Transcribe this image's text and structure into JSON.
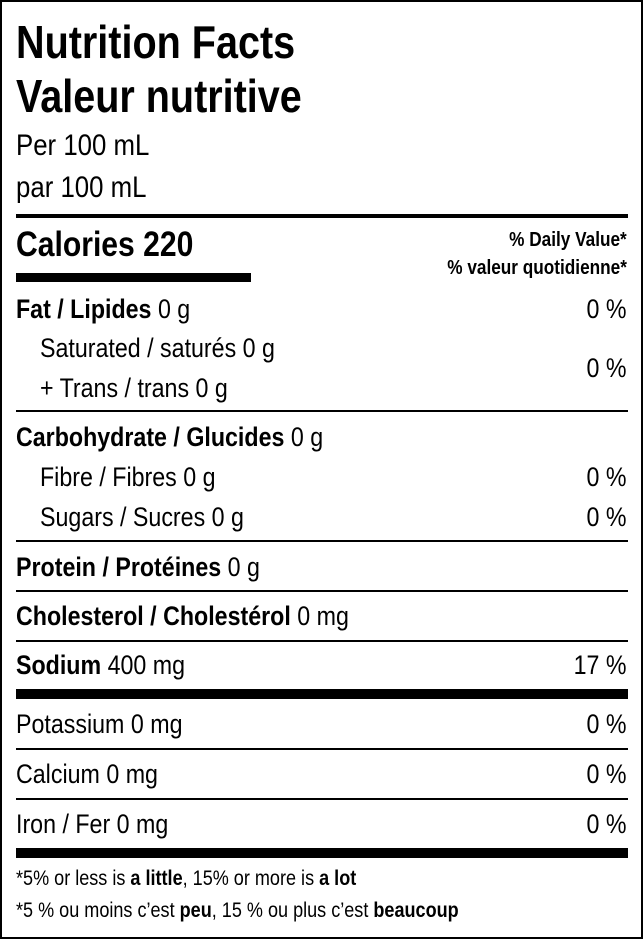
{
  "title_en": "Nutrition Facts",
  "title_fr": "Valeur nutritive",
  "serving_en": "Per 100 mL",
  "serving_fr": "par 100 mL",
  "calories": {
    "label": "Calories",
    "value": "220"
  },
  "daily_value_en": "% Daily Value*",
  "daily_value_fr": "% valeur quotidienne*",
  "nutrients": {
    "fat": {
      "label": "Fat / Lipides",
      "amount": "0 g",
      "dv": "0 %"
    },
    "saturated": {
      "label": "Saturated / saturés",
      "amount": "0 g"
    },
    "trans": {
      "label": "+ Trans / trans",
      "amount": "0 g",
      "dv": "0 %"
    },
    "carbohydrate": {
      "label": "Carbohydrate / Glucides",
      "amount": "0 g"
    },
    "fibre": {
      "label": "Fibre / Fibres",
      "amount": "0 g",
      "dv": "0 %"
    },
    "sugars": {
      "label": "Sugars / Sucres",
      "amount": "0 g",
      "dv": "0 %"
    },
    "protein": {
      "label": "Protein / Protéines",
      "amount": "0 g"
    },
    "cholesterol": {
      "label": "Cholesterol / Cholestérol",
      "amount": "0 mg"
    },
    "sodium": {
      "label": "Sodium",
      "amount": "400 mg",
      "dv": "17 %"
    },
    "potassium": {
      "label": "Potassium",
      "amount": "0 mg",
      "dv": "0 %"
    },
    "calcium": {
      "label": "Calcium",
      "amount": "0 mg",
      "dv": "0 %"
    },
    "iron": {
      "label": "Iron / Fer",
      "amount": "0 mg",
      "dv": "0 %"
    }
  },
  "footnote_en": {
    "a": "*5% or less is ",
    "b": "a little",
    "c": ", 15% or more is ",
    "d": "a lot"
  },
  "footnote_fr": {
    "a": "*5 % ou moins c’est ",
    "b": "peu",
    "c": ", 15 % ou plus c’est ",
    "d": "beaucoup"
  }
}
